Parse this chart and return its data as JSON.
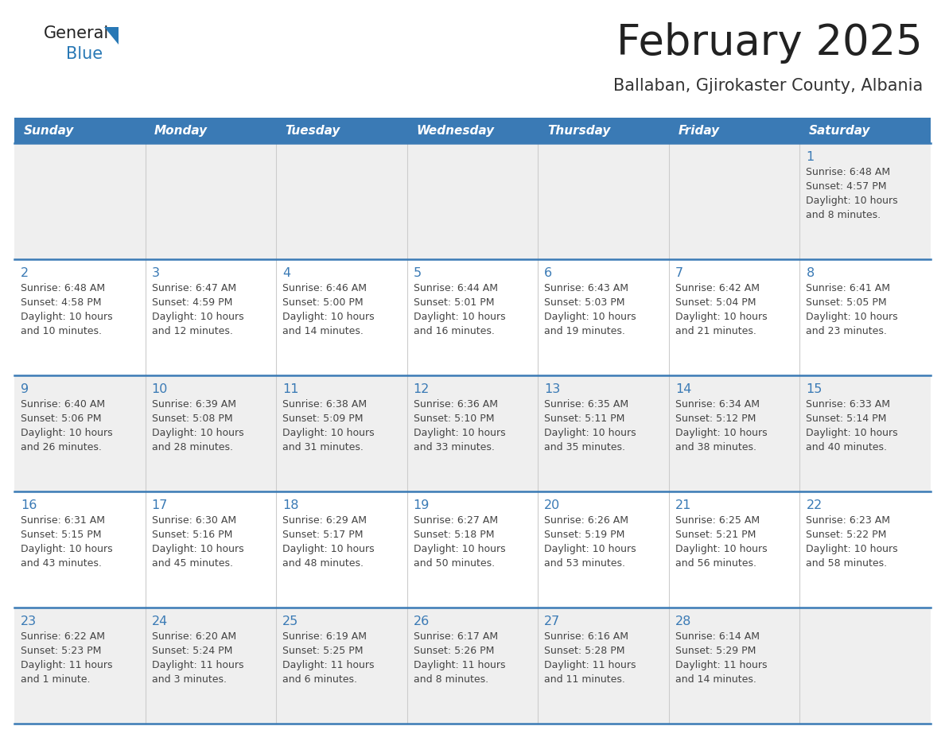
{
  "title": "February 2025",
  "subtitle": "Ballaban, Gjirokaster County, Albania",
  "days_of_week": [
    "Sunday",
    "Monday",
    "Tuesday",
    "Wednesday",
    "Thursday",
    "Friday",
    "Saturday"
  ],
  "header_bg": "#3a7ab5",
  "header_text": "#ffffff",
  "row_bg_odd": "#efefef",
  "row_bg_even": "#ffffff",
  "border_color": "#3a7ab5",
  "day_num_color": "#3a7ab5",
  "text_color": "#444444",
  "title_color": "#222222",
  "subtitle_color": "#333333",
  "logo_general_color": "#222222",
  "logo_blue_color": "#2878b5",
  "weeks": [
    {
      "days": [
        {
          "date": null,
          "info": null
        },
        {
          "date": null,
          "info": null
        },
        {
          "date": null,
          "info": null
        },
        {
          "date": null,
          "info": null
        },
        {
          "date": null,
          "info": null
        },
        {
          "date": null,
          "info": null
        },
        {
          "date": 1,
          "info": "Sunrise: 6:48 AM\nSunset: 4:57 PM\nDaylight: 10 hours\nand 8 minutes."
        }
      ]
    },
    {
      "days": [
        {
          "date": 2,
          "info": "Sunrise: 6:48 AM\nSunset: 4:58 PM\nDaylight: 10 hours\nand 10 minutes."
        },
        {
          "date": 3,
          "info": "Sunrise: 6:47 AM\nSunset: 4:59 PM\nDaylight: 10 hours\nand 12 minutes."
        },
        {
          "date": 4,
          "info": "Sunrise: 6:46 AM\nSunset: 5:00 PM\nDaylight: 10 hours\nand 14 minutes."
        },
        {
          "date": 5,
          "info": "Sunrise: 6:44 AM\nSunset: 5:01 PM\nDaylight: 10 hours\nand 16 minutes."
        },
        {
          "date": 6,
          "info": "Sunrise: 6:43 AM\nSunset: 5:03 PM\nDaylight: 10 hours\nand 19 minutes."
        },
        {
          "date": 7,
          "info": "Sunrise: 6:42 AM\nSunset: 5:04 PM\nDaylight: 10 hours\nand 21 minutes."
        },
        {
          "date": 8,
          "info": "Sunrise: 6:41 AM\nSunset: 5:05 PM\nDaylight: 10 hours\nand 23 minutes."
        }
      ]
    },
    {
      "days": [
        {
          "date": 9,
          "info": "Sunrise: 6:40 AM\nSunset: 5:06 PM\nDaylight: 10 hours\nand 26 minutes."
        },
        {
          "date": 10,
          "info": "Sunrise: 6:39 AM\nSunset: 5:08 PM\nDaylight: 10 hours\nand 28 minutes."
        },
        {
          "date": 11,
          "info": "Sunrise: 6:38 AM\nSunset: 5:09 PM\nDaylight: 10 hours\nand 31 minutes."
        },
        {
          "date": 12,
          "info": "Sunrise: 6:36 AM\nSunset: 5:10 PM\nDaylight: 10 hours\nand 33 minutes."
        },
        {
          "date": 13,
          "info": "Sunrise: 6:35 AM\nSunset: 5:11 PM\nDaylight: 10 hours\nand 35 minutes."
        },
        {
          "date": 14,
          "info": "Sunrise: 6:34 AM\nSunset: 5:12 PM\nDaylight: 10 hours\nand 38 minutes."
        },
        {
          "date": 15,
          "info": "Sunrise: 6:33 AM\nSunset: 5:14 PM\nDaylight: 10 hours\nand 40 minutes."
        }
      ]
    },
    {
      "days": [
        {
          "date": 16,
          "info": "Sunrise: 6:31 AM\nSunset: 5:15 PM\nDaylight: 10 hours\nand 43 minutes."
        },
        {
          "date": 17,
          "info": "Sunrise: 6:30 AM\nSunset: 5:16 PM\nDaylight: 10 hours\nand 45 minutes."
        },
        {
          "date": 18,
          "info": "Sunrise: 6:29 AM\nSunset: 5:17 PM\nDaylight: 10 hours\nand 48 minutes."
        },
        {
          "date": 19,
          "info": "Sunrise: 6:27 AM\nSunset: 5:18 PM\nDaylight: 10 hours\nand 50 minutes."
        },
        {
          "date": 20,
          "info": "Sunrise: 6:26 AM\nSunset: 5:19 PM\nDaylight: 10 hours\nand 53 minutes."
        },
        {
          "date": 21,
          "info": "Sunrise: 6:25 AM\nSunset: 5:21 PM\nDaylight: 10 hours\nand 56 minutes."
        },
        {
          "date": 22,
          "info": "Sunrise: 6:23 AM\nSunset: 5:22 PM\nDaylight: 10 hours\nand 58 minutes."
        }
      ]
    },
    {
      "days": [
        {
          "date": 23,
          "info": "Sunrise: 6:22 AM\nSunset: 5:23 PM\nDaylight: 11 hours\nand 1 minute."
        },
        {
          "date": 24,
          "info": "Sunrise: 6:20 AM\nSunset: 5:24 PM\nDaylight: 11 hours\nand 3 minutes."
        },
        {
          "date": 25,
          "info": "Sunrise: 6:19 AM\nSunset: 5:25 PM\nDaylight: 11 hours\nand 6 minutes."
        },
        {
          "date": 26,
          "info": "Sunrise: 6:17 AM\nSunset: 5:26 PM\nDaylight: 11 hours\nand 8 minutes."
        },
        {
          "date": 27,
          "info": "Sunrise: 6:16 AM\nSunset: 5:28 PM\nDaylight: 11 hours\nand 11 minutes."
        },
        {
          "date": 28,
          "info": "Sunrise: 6:14 AM\nSunset: 5:29 PM\nDaylight: 11 hours\nand 14 minutes."
        },
        {
          "date": null,
          "info": null
        }
      ]
    }
  ]
}
